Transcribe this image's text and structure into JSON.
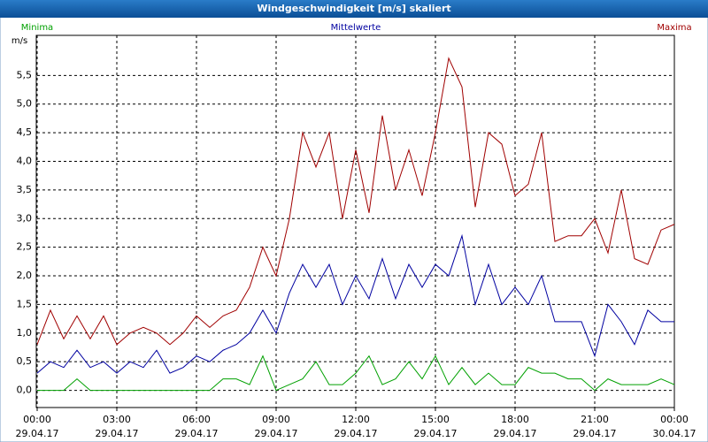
{
  "chart_data": {
    "type": "line",
    "title": "Windgeschwindigkeit [m/s] skaliert",
    "y_unit": "m/s",
    "x": [
      0,
      0.5,
      1,
      1.5,
      2,
      2.5,
      3,
      3.5,
      4,
      4.5,
      5,
      5.5,
      6,
      6.5,
      7,
      7.5,
      8,
      8.5,
      9,
      9.5,
      10,
      10.5,
      11,
      11.5,
      12,
      12.5,
      13,
      13.5,
      14,
      14.5,
      15,
      15.5,
      16,
      16.5,
      17,
      17.5,
      18,
      18.5,
      19,
      19.5,
      20,
      20.5,
      21,
      21.5,
      22,
      22.5,
      23,
      23.5,
      24
    ],
    "series": [
      {
        "name": "Minima",
        "color": "#00a000",
        "values": [
          0,
          0,
          0,
          0.2,
          0,
          0,
          0,
          0,
          0,
          0,
          0,
          0,
          0,
          0,
          0.2,
          0.2,
          0.1,
          0.6,
          0,
          0.1,
          0.2,
          0.5,
          0.1,
          0.1,
          0.3,
          0.6,
          0.1,
          0.2,
          0.5,
          0.2,
          0.6,
          0.1,
          0.4,
          0.1,
          0.3,
          0.1,
          0.1,
          0.4,
          0.3,
          0.3,
          0.2,
          0.2,
          0,
          0.2,
          0.1,
          0.1,
          0.1,
          0.2,
          0.1
        ]
      },
      {
        "name": "Mittelwerte",
        "color": "#0000a0",
        "values": [
          0.3,
          0.5,
          0.4,
          0.7,
          0.4,
          0.5,
          0.3,
          0.5,
          0.4,
          0.7,
          0.3,
          0.4,
          0.6,
          0.5,
          0.7,
          0.8,
          1.0,
          1.4,
          1.0,
          1.7,
          2.2,
          1.8,
          2.2,
          1.5,
          2.0,
          1.6,
          2.3,
          1.6,
          2.2,
          1.8,
          2.2,
          2.0,
          2.7,
          1.5,
          2.2,
          1.5,
          1.8,
          1.5,
          2.0,
          1.2,
          1.2,
          1.2,
          0.6,
          1.5,
          1.2,
          0.8,
          1.4,
          1.2,
          1.2
        ]
      },
      {
        "name": "Maxima",
        "color": "#a00000",
        "values": [
          0.8,
          1.4,
          0.9,
          1.3,
          0.9,
          1.3,
          0.8,
          1.0,
          1.1,
          1.0,
          0.8,
          1.0,
          1.3,
          1.1,
          1.3,
          1.4,
          1.8,
          2.5,
          2.0,
          3.0,
          4.5,
          3.9,
          4.5,
          3.0,
          4.2,
          3.1,
          4.8,
          3.5,
          4.2,
          3.4,
          4.5,
          5.8,
          5.3,
          3.2,
          4.5,
          4.3,
          3.4,
          3.6,
          4.5,
          2.6,
          2.7,
          2.7,
          3.0,
          2.4,
          3.5,
          2.3,
          2.2,
          2.8,
          2.9
        ]
      }
    ],
    "xlim": [
      0,
      24
    ],
    "xticks": [
      {
        "value": 0,
        "label": "00:00",
        "date": "29.04.17"
      },
      {
        "value": 3,
        "label": "03:00",
        "date": "29.04.17"
      },
      {
        "value": 6,
        "label": "06:00",
        "date": "29.04.17"
      },
      {
        "value": 9,
        "label": "09:00",
        "date": "29.04.17"
      },
      {
        "value": 12,
        "label": "12:00",
        "date": "29.04.17"
      },
      {
        "value": 15,
        "label": "15:00",
        "date": "29.04.17"
      },
      {
        "value": 18,
        "label": "18:00",
        "date": "29.04.17"
      },
      {
        "value": 21,
        "label": "21:00",
        "date": "29.04.17"
      },
      {
        "value": 24,
        "label": "00:00",
        "date": "30.04.17"
      }
    ],
    "ylim": [
      -0.3,
      6.2
    ],
    "yticks": [
      {
        "value": 0,
        "label": "0,0"
      },
      {
        "value": 0.5,
        "label": "0,5"
      },
      {
        "value": 1,
        "label": "1,0"
      },
      {
        "value": 1.5,
        "label": "1,5"
      },
      {
        "value": 2,
        "label": "2,0"
      },
      {
        "value": 2.5,
        "label": "2,5"
      },
      {
        "value": 3,
        "label": "3,0"
      },
      {
        "value": 3.5,
        "label": "3,5"
      },
      {
        "value": 4,
        "label": "4,0"
      },
      {
        "value": 4.5,
        "label": "4,5"
      },
      {
        "value": 5,
        "label": "5,0"
      },
      {
        "value": 5.5,
        "label": "5,5"
      }
    ],
    "grid": true
  }
}
